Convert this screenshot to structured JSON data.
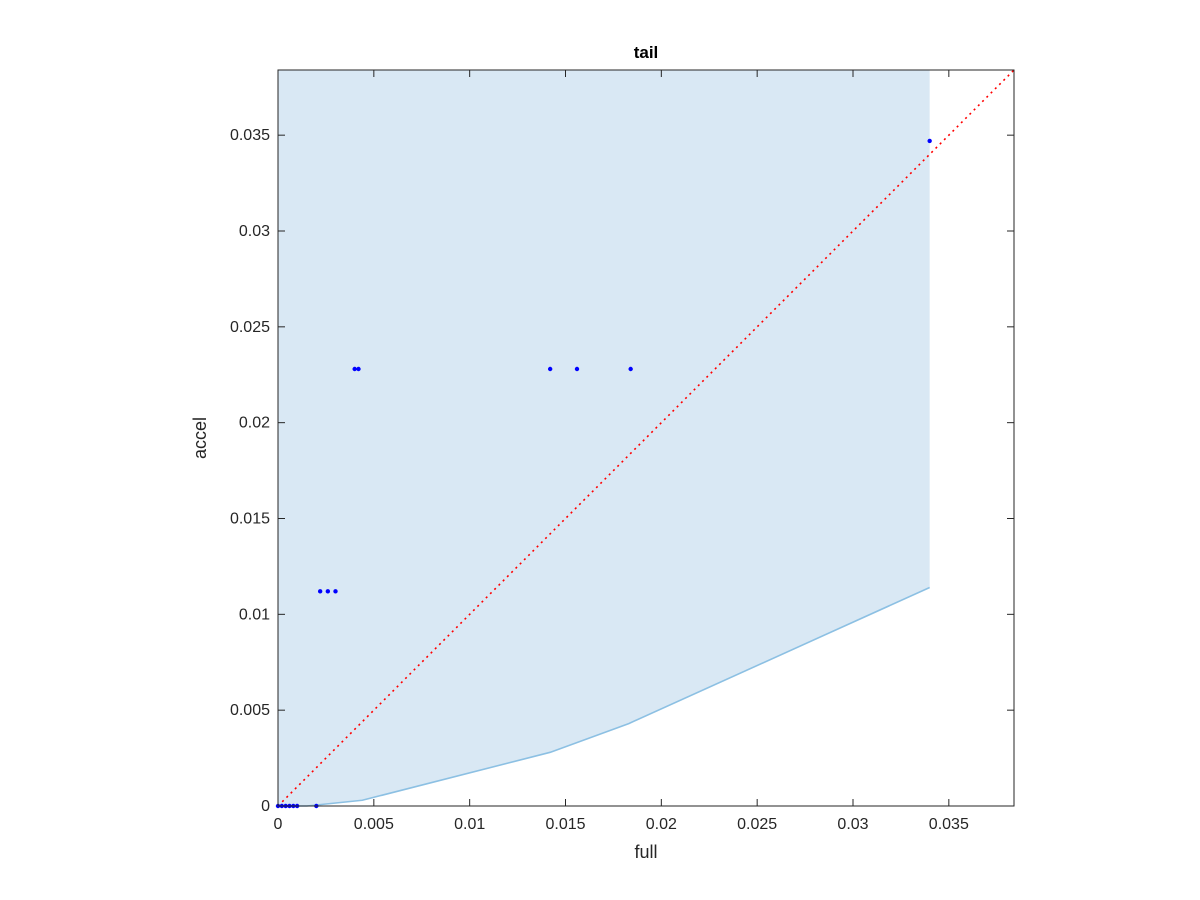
{
  "chart_data": {
    "type": "scatter",
    "title": "tail",
    "xlabel": "full",
    "ylabel": "accel",
    "xlim": [
      0,
      0.0384
    ],
    "ylim": [
      0,
      0.0384
    ],
    "xticks": [
      0,
      0.005,
      0.01,
      0.015,
      0.02,
      0.025,
      0.03,
      0.035
    ],
    "yticks": [
      0,
      0.005,
      0.01,
      0.015,
      0.02,
      0.025,
      0.03,
      0.035
    ],
    "xtick_labels": [
      "0",
      "0.005",
      "0.01",
      "0.015",
      "0.02",
      "0.025",
      "0.03",
      "0.035"
    ],
    "ytick_labels": [
      "0",
      "0.005",
      "0.01",
      "0.015",
      "0.02",
      "0.025",
      "0.03",
      "0.035"
    ],
    "grid": false,
    "colors": {
      "points": "#0000ff",
      "reference_line": "#ff0000",
      "band_fill": "#d9e8f4",
      "band_edge": "#8cc0e3"
    },
    "band": {
      "x_end": 0.034,
      "upper": 0.0384,
      "lower": [
        {
          "x": 0,
          "y": 0
        },
        {
          "x": 0.0015,
          "y": 0
        },
        {
          "x": 0.0044,
          "y": 0.0003
        },
        {
          "x": 0.0142,
          "y": 0.0028
        },
        {
          "x": 0.0183,
          "y": 0.0043
        },
        {
          "x": 0.034,
          "y": 0.0114
        }
      ]
    },
    "reference_line": {
      "x": [
        0,
        0.0384
      ],
      "y": [
        0,
        0.0384
      ],
      "style": "dotted"
    },
    "points": [
      {
        "x": 0.034,
        "y": 0.0347
      },
      {
        "x": 0.004,
        "y": 0.0228
      },
      {
        "x": 0.0042,
        "y": 0.0228
      },
      {
        "x": 0.0142,
        "y": 0.0228
      },
      {
        "x": 0.0156,
        "y": 0.0228
      },
      {
        "x": 0.0184,
        "y": 0.0228
      },
      {
        "x": 0.0022,
        "y": 0.0112
      },
      {
        "x": 0.0026,
        "y": 0.0112
      },
      {
        "x": 0.003,
        "y": 0.0112
      },
      {
        "x": 0.0,
        "y": 0.0
      },
      {
        "x": 0.0002,
        "y": 0.0
      },
      {
        "x": 0.0004,
        "y": 0.0
      },
      {
        "x": 0.0006,
        "y": 0.0
      },
      {
        "x": 0.0008,
        "y": 0.0
      },
      {
        "x": 0.001,
        "y": 0.0
      },
      {
        "x": 0.002,
        "y": 0.0
      }
    ]
  }
}
